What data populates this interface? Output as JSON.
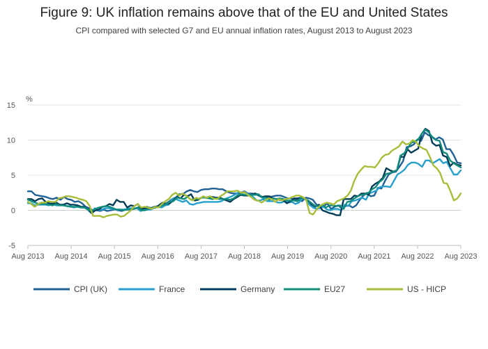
{
  "chart_data": {
    "type": "line",
    "title": "Figure 9: UK inflation remains above that of the EU and United States",
    "subtitle": "CPI compared with selected G7 and EU annual inflation rates, August 2013 to August 2023",
    "ylabel": "%",
    "xlabel": "",
    "ylim": [
      -5,
      15
    ],
    "yticks": [
      "-5",
      "0",
      "5",
      "10",
      "15"
    ],
    "x_start": "2013-08",
    "x_end": "2023-08",
    "xticks": [
      "Aug 2013",
      "Aug 2014",
      "Aug 2015",
      "Aug 2016",
      "Aug 2017",
      "Aug 2018",
      "Aug 2019",
      "Aug 2020",
      "Aug 2021",
      "Aug 2022",
      "Aug 2023"
    ],
    "legend_position": "bottom",
    "grid": true,
    "series": [
      {
        "name": "CPI (UK)",
        "color": "#206095",
        "values": [
          2.7,
          2.7,
          2.2,
          2.1,
          2.0,
          1.9,
          1.7,
          1.6,
          1.8,
          1.5,
          1.9,
          1.6,
          1.5,
          1.2,
          1.3,
          1.0,
          0.5,
          0.3,
          0.0,
          0.0,
          -0.1,
          0.1,
          -0.1,
          0.0,
          0.1,
          0.0,
          -0.1,
          0.1,
          0.1,
          0.2,
          0.3,
          0.5,
          0.3,
          0.5,
          0.3,
          0.5,
          0.6,
          1.0,
          0.9,
          1.2,
          1.6,
          1.8,
          2.3,
          2.3,
          2.7,
          2.9,
          2.7,
          2.6,
          2.9,
          3.0,
          3.0,
          3.1,
          3.1,
          3.0,
          3.0,
          2.7,
          2.5,
          2.4,
          2.4,
          2.5,
          2.7,
          2.4,
          2.4,
          2.3,
          2.1,
          1.8,
          1.9,
          1.9,
          2.0,
          2.1,
          2.1,
          1.9,
          1.7,
          1.7,
          1.5,
          1.5,
          1.3,
          1.8,
          1.7,
          1.5,
          0.8,
          0.5,
          0.6,
          1.0,
          0.2,
          0.5,
          0.7,
          0.3,
          0.6,
          0.7,
          0.4,
          0.7,
          1.5,
          2.1,
          2.5,
          2.0,
          2.1,
          3.2,
          3.1,
          4.2,
          5.1,
          5.4,
          5.5,
          6.2,
          7.0,
          9.0,
          9.1,
          9.4,
          10.1,
          9.9,
          11.1,
          10.7,
          10.5,
          10.1,
          10.4,
          10.1,
          8.7,
          8.7,
          7.9,
          6.8,
          6.7
        ]
      },
      {
        "name": "France",
        "color": "#27a0cc",
        "values": [
          1.0,
          1.0,
          0.7,
          0.8,
          0.8,
          0.8,
          0.7,
          1.1,
          0.7,
          0.7,
          0.8,
          0.6,
          0.6,
          0.4,
          0.5,
          0.4,
          0.4,
          0.1,
          -0.4,
          0.3,
          0.0,
          0.1,
          0.3,
          0.3,
          0.2,
          0.1,
          0.1,
          0.1,
          0.2,
          0.3,
          0.3,
          0.3,
          -0.1,
          0.1,
          0.1,
          0.1,
          0.4,
          0.5,
          0.4,
          0.7,
          0.8,
          1.6,
          1.6,
          1.4,
          1.2,
          1.4,
          0.9,
          0.8,
          1.0,
          1.1,
          1.2,
          1.2,
          1.2,
          1.2,
          1.2,
          1.3,
          1.6,
          1.8,
          2.0,
          2.3,
          2.6,
          2.5,
          2.5,
          2.2,
          1.9,
          1.4,
          1.4,
          1.6,
          1.3,
          1.3,
          1.3,
          1.1,
          1.1,
          1.3,
          1.1,
          1.2,
          0.9,
          1.1,
          1.7,
          1.5,
          0.8,
          0.4,
          0.2,
          0.3,
          0.5,
          0.1,
          0.0,
          0.2,
          0.2,
          0.0,
          0.8,
          0.6,
          1.3,
          1.4,
          1.6,
          1.8,
          1.5,
          2.4,
          2.6,
          2.8,
          3.3,
          3.4,
          3.4,
          3.3,
          4.2,
          5.1,
          5.4,
          5.8,
          6.5,
          6.8,
          6.8,
          6.6,
          6.2,
          7.1,
          7.1,
          6.7,
          7.0,
          7.3,
          6.7,
          6.9,
          6.0,
          5.1,
          5.1,
          5.7
        ]
      },
      {
        "name": "Germany",
        "color": "#003c57",
        "values": [
          1.6,
          1.6,
          1.3,
          1.6,
          1.7,
          1.2,
          1.0,
          0.9,
          1.1,
          0.8,
          0.8,
          1.0,
          0.8,
          0.8,
          0.7,
          0.5,
          0.5,
          0.1,
          -0.4,
          0.0,
          0.1,
          0.5,
          0.6,
          0.9,
          0.7,
          1.5,
          1.2,
          1.2,
          0.4,
          0.7,
          0.6,
          0.9,
          0.2,
          0.3,
          0.4,
          0.3,
          0.4,
          0.7,
          1.1,
          0.9,
          1.0,
          1.4,
          1.9,
          1.7,
          2.2,
          2.0,
          2.3,
          1.4,
          1.5,
          1.8,
          1.8,
          1.9,
          1.9,
          1.8,
          1.8,
          1.6,
          1.4,
          1.2,
          1.6,
          1.9,
          2.2,
          2.1,
          2.1,
          2.2,
          2.4,
          2.2,
          1.9,
          2.0,
          2.0,
          1.7,
          1.6,
          1.5,
          1.4,
          1.0,
          1.3,
          1.7,
          1.7,
          1.8,
          1.6,
          1.4,
          0.8,
          0.5,
          0.8,
          0.0,
          -0.2,
          -0.4,
          -0.5,
          -0.7,
          -0.7,
          1.6,
          1.6,
          1.6,
          2.1,
          2.0,
          2.4,
          2.4,
          2.2,
          3.4,
          3.8,
          4.1,
          4.6,
          6.0,
          5.7,
          5.5,
          5.7,
          7.6,
          7.6,
          8.7,
          8.2,
          8.5,
          8.8,
          10.9,
          11.6,
          11.3,
          9.6,
          9.2,
          9.3,
          7.8,
          7.6,
          6.3,
          6.8,
          6.5,
          6.4
        ]
      },
      {
        "name": "EU27",
        "color": "#118c7b",
        "values": [
          1.5,
          1.3,
          1.1,
          0.9,
          0.9,
          0.9,
          0.8,
          0.7,
          0.9,
          0.7,
          0.7,
          0.6,
          0.5,
          0.5,
          0.5,
          0.4,
          0.4,
          0.1,
          -0.1,
          0.2,
          0.4,
          0.5,
          0.6,
          0.5,
          0.3,
          0.1,
          0.1,
          0.0,
          0.1,
          0.1,
          0.2,
          0.4,
          0.0,
          0.0,
          0.2,
          0.3,
          0.4,
          0.5,
          0.7,
          0.9,
          1.2,
          1.3,
          1.8,
          1.7,
          1.6,
          1.9,
          1.5,
          1.6,
          1.6,
          1.8,
          1.8,
          1.7,
          1.6,
          1.7,
          1.6,
          1.6,
          1.6,
          1.5,
          1.7,
          2.1,
          2.3,
          2.2,
          2.2,
          2.2,
          2.2,
          2.3,
          1.8,
          1.8,
          1.5,
          1.7,
          1.6,
          1.7,
          1.6,
          1.4,
          1.4,
          1.4,
          1.3,
          1.8,
          1.6,
          1.4,
          1.0,
          0.6,
          0.6,
          0.8,
          0.4,
          0.7,
          0.7,
          0.6,
          0.7,
          0.2,
          1.2,
          1.3,
          1.7,
          2.0,
          2.2,
          2.3,
          2.5,
          3.0,
          3.3,
          4.0,
          4.4,
          5.2,
          5.3,
          5.5,
          5.7,
          7.8,
          8.1,
          8.8,
          9.6,
          9.8,
          10.1,
          10.9,
          11.5,
          11.1,
          10.4,
          10.0,
          9.9,
          8.3,
          8.1,
          7.1,
          6.7,
          6.4,
          6.1
        ]
      },
      {
        "name": "US - HICP",
        "color": "#a8bd3a",
        "values": [
          1.2,
          0.9,
          0.5,
          0.9,
          1.1,
          1.1,
          1.3,
          1.2,
          1.2,
          1.7,
          1.8,
          2.0,
          2.0,
          1.9,
          1.8,
          1.6,
          1.5,
          1.3,
          0.6,
          -0.8,
          -0.8,
          -0.8,
          -1.0,
          -0.8,
          -0.7,
          -0.6,
          -0.6,
          -0.9,
          -0.8,
          -0.4,
          0.0,
          0.6,
          0.9,
          0.4,
          0.5,
          0.4,
          0.2,
          0.5,
          0.4,
          0.9,
          1.3,
          1.6,
          2.2,
          2.5,
          2.1,
          2.4,
          2.1,
          1.7,
          1.4,
          1.8,
          1.6,
          2.0,
          1.8,
          2.0,
          1.7,
          1.6,
          2.0,
          2.3,
          2.7,
          2.7,
          2.7,
          2.8,
          2.5,
          2.6,
          2.2,
          1.9,
          1.5,
          1.4,
          1.1,
          1.4,
          1.7,
          1.6,
          1.2,
          1.6,
          1.4,
          1.6,
          1.7,
          1.9,
          2.1,
          2.1,
          1.9,
          1.5,
          -0.4,
          -0.6,
          0.1,
          0.6,
          0.9,
          1.1,
          1.0,
          0.8,
          1.3,
          1.5,
          1.7,
          2.1,
          2.8,
          4.2,
          5.2,
          5.8,
          6.3,
          6.2,
          6.2,
          6.1,
          6.7,
          7.5,
          7.9,
          8.0,
          8.5,
          8.8,
          9.1,
          9.8,
          9.4,
          9.5,
          10.0,
          9.7,
          9.1,
          8.8,
          8.6,
          7.6,
          6.4,
          6.0,
          5.3,
          3.9,
          3.8,
          2.7,
          1.4,
          1.7,
          2.4
        ]
      }
    ]
  }
}
